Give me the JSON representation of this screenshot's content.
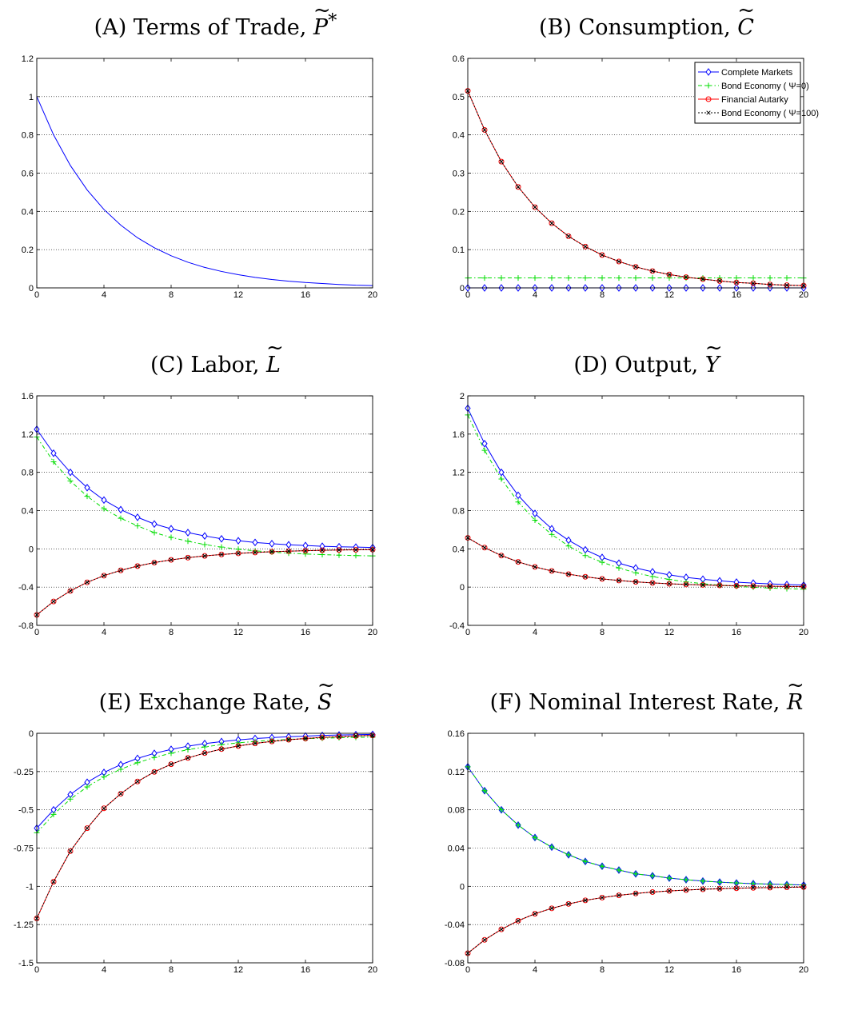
{
  "colors": {
    "complete_markets": "#0000ff",
    "bond_psi0": "#00dd00",
    "financial_autarky": "#ff0000",
    "bond_psi100": "#000000",
    "rate_marker_fill": "#40c0c0",
    "grid": "#000000",
    "axes": "#000000"
  },
  "legend": {
    "panel": "B",
    "entries": [
      {
        "series": "complete",
        "label": "Complete Markets"
      },
      {
        "series": "bond0",
        "label": "Bond Economy ( Ψ=0)"
      },
      {
        "series": "autarky",
        "label": "Financial Autarky"
      },
      {
        "series": "bond100",
        "label": "Bond Economy ( Ψ=100)"
      }
    ]
  },
  "chart_data": [
    {
      "id": "A",
      "type": "line",
      "title": "(A) Terms of Trade, ",
      "symbol": "P",
      "symbol_sup": "*",
      "x": [
        0,
        1,
        2,
        3,
        4,
        5,
        6,
        7,
        8,
        9,
        10,
        11,
        12,
        13,
        14,
        15,
        16,
        17,
        18,
        19,
        20
      ],
      "xticks": [
        "0",
        "4",
        "8",
        "12",
        "16",
        "20"
      ],
      "xlim": [
        0,
        20
      ],
      "ylim": [
        0,
        1.2
      ],
      "yticks": [
        "0",
        "0.2",
        "0.4",
        "0.6",
        "0.8",
        "1",
        "1.2"
      ],
      "grid": "horizontal dotted",
      "series": [
        {
          "key": "complete",
          "marker": "none",
          "values": [
            1,
            0.8,
            0.64,
            0.512,
            0.41,
            0.328,
            0.262,
            0.21,
            0.168,
            0.134,
            0.107,
            0.086,
            0.069,
            0.055,
            0.044,
            0.035,
            0.028,
            0.023,
            0.018,
            0.014,
            0.012
          ]
        }
      ]
    },
    {
      "id": "B",
      "type": "line",
      "title": "(B) Consumption, ",
      "symbol": "C",
      "symbol_sup": "",
      "x": [
        0,
        1,
        2,
        3,
        4,
        5,
        6,
        7,
        8,
        9,
        10,
        11,
        12,
        13,
        14,
        15,
        16,
        17,
        18,
        19,
        20
      ],
      "xticks": [
        "0",
        "4",
        "8",
        "12",
        "16",
        "20"
      ],
      "xlim": [
        0,
        20
      ],
      "ylim": [
        0,
        0.6
      ],
      "yticks": [
        "0",
        "0.1",
        "0.2",
        "0.3",
        "0.4",
        "0.5",
        "0.6"
      ],
      "grid": "horizontal dotted",
      "legend_location": "top-right",
      "series": [
        {
          "key": "complete",
          "marker": "diamond",
          "values": [
            0,
            0,
            0,
            0,
            0,
            0,
            0,
            0,
            0,
            0,
            0,
            0,
            0,
            0,
            0,
            0,
            0,
            0,
            0,
            0,
            0
          ]
        },
        {
          "key": "bond0",
          "marker": "plus",
          "values": [
            0.026,
            0.026,
            0.026,
            0.026,
            0.026,
            0.026,
            0.026,
            0.026,
            0.026,
            0.026,
            0.026,
            0.026,
            0.026,
            0.026,
            0.026,
            0.026,
            0.026,
            0.026,
            0.026,
            0.026,
            0.026
          ]
        },
        {
          "key": "autarky",
          "marker": "circle",
          "values": [
            0.515,
            0.413,
            0.33,
            0.264,
            0.211,
            0.169,
            0.135,
            0.108,
            0.086,
            0.069,
            0.055,
            0.044,
            0.035,
            0.028,
            0.023,
            0.018,
            0.014,
            0.012,
            0.009,
            0.007,
            0.006
          ]
        },
        {
          "key": "bond100",
          "marker": "x",
          "values": [
            0.515,
            0.413,
            0.33,
            0.264,
            0.211,
            0.169,
            0.135,
            0.108,
            0.086,
            0.069,
            0.055,
            0.044,
            0.035,
            0.028,
            0.023,
            0.018,
            0.014,
            0.012,
            0.009,
            0.007,
            0.006
          ]
        }
      ]
    },
    {
      "id": "C",
      "type": "line",
      "title": "(C) Labor, ",
      "symbol": "L",
      "symbol_sup": "",
      "x": [
        0,
        1,
        2,
        3,
        4,
        5,
        6,
        7,
        8,
        9,
        10,
        11,
        12,
        13,
        14,
        15,
        16,
        17,
        18,
        19,
        20
      ],
      "xticks": [
        "0",
        "4",
        "8",
        "12",
        "16",
        "20"
      ],
      "xlim": [
        0,
        20
      ],
      "ylim": [
        -0.8,
        1.6
      ],
      "yticks": [
        "-0.8",
        "-0.4",
        "0",
        "0.4",
        "0.8",
        "1.2",
        "1.6"
      ],
      "grid": "horizontal dotted",
      "series": [
        {
          "key": "complete",
          "marker": "diamond",
          "values": [
            1.25,
            1.0,
            0.8,
            0.64,
            0.51,
            0.41,
            0.33,
            0.26,
            0.21,
            0.17,
            0.135,
            0.105,
            0.085,
            0.067,
            0.054,
            0.043,
            0.035,
            0.027,
            0.022,
            0.018,
            0.014
          ]
        },
        {
          "key": "bond0",
          "marker": "plus",
          "values": [
            1.17,
            0.91,
            0.71,
            0.55,
            0.42,
            0.32,
            0.24,
            0.17,
            0.12,
            0.08,
            0.045,
            0.018,
            -0.004,
            -0.021,
            -0.034,
            -0.045,
            -0.054,
            -0.06,
            -0.066,
            -0.07,
            -0.074
          ]
        },
        {
          "key": "autarky",
          "marker": "circle",
          "values": [
            -0.69,
            -0.55,
            -0.44,
            -0.35,
            -0.28,
            -0.225,
            -0.18,
            -0.144,
            -0.115,
            -0.092,
            -0.074,
            -0.059,
            -0.047,
            -0.038,
            -0.03,
            -0.024,
            -0.019,
            -0.015,
            -0.012,
            -0.01,
            -0.008
          ]
        },
        {
          "key": "bond100",
          "marker": "x",
          "values": [
            -0.69,
            -0.55,
            -0.44,
            -0.35,
            -0.28,
            -0.225,
            -0.18,
            -0.144,
            -0.115,
            -0.092,
            -0.074,
            -0.059,
            -0.047,
            -0.038,
            -0.03,
            -0.024,
            -0.019,
            -0.015,
            -0.012,
            -0.01,
            -0.008
          ]
        }
      ]
    },
    {
      "id": "D",
      "type": "line",
      "title": "(D) Output, ",
      "symbol": "Y",
      "symbol_sup": "",
      "x": [
        0,
        1,
        2,
        3,
        4,
        5,
        6,
        7,
        8,
        9,
        10,
        11,
        12,
        13,
        14,
        15,
        16,
        17,
        18,
        19,
        20
      ],
      "xticks": [
        "0",
        "4",
        "8",
        "12",
        "16",
        "20"
      ],
      "xlim": [
        0,
        20
      ],
      "ylim": [
        -0.4,
        2
      ],
      "yticks": [
        "-0.4",
        "0",
        "0.4",
        "0.8",
        "1.2",
        "1.6",
        "2"
      ],
      "grid": "horizontal dotted",
      "series": [
        {
          "key": "complete",
          "marker": "diamond",
          "values": [
            1.87,
            1.5,
            1.2,
            0.96,
            0.77,
            0.61,
            0.49,
            0.39,
            0.31,
            0.25,
            0.2,
            0.16,
            0.128,
            0.102,
            0.082,
            0.066,
            0.052,
            0.042,
            0.034,
            0.027,
            0.021
          ]
        },
        {
          "key": "bond0",
          "marker": "plus",
          "values": [
            1.8,
            1.43,
            1.13,
            0.89,
            0.7,
            0.55,
            0.43,
            0.33,
            0.26,
            0.2,
            0.15,
            0.11,
            0.08,
            0.055,
            0.036,
            0.02,
            0.008,
            -0.002,
            -0.01,
            -0.016,
            -0.022
          ]
        },
        {
          "key": "autarky",
          "marker": "circle",
          "values": [
            0.515,
            0.413,
            0.33,
            0.264,
            0.211,
            0.169,
            0.135,
            0.108,
            0.086,
            0.069,
            0.055,
            0.044,
            0.035,
            0.028,
            0.023,
            0.018,
            0.014,
            0.012,
            0.009,
            0.007,
            0.006
          ]
        },
        {
          "key": "bond100",
          "marker": "x",
          "values": [
            0.515,
            0.413,
            0.33,
            0.264,
            0.211,
            0.169,
            0.135,
            0.108,
            0.086,
            0.069,
            0.055,
            0.044,
            0.035,
            0.028,
            0.023,
            0.018,
            0.014,
            0.012,
            0.009,
            0.007,
            0.006
          ]
        }
      ]
    },
    {
      "id": "E",
      "type": "line",
      "title": "(E) Exchange Rate, ",
      "symbol": "S",
      "symbol_sup": "",
      "x": [
        0,
        1,
        2,
        3,
        4,
        5,
        6,
        7,
        8,
        9,
        10,
        11,
        12,
        13,
        14,
        15,
        16,
        17,
        18,
        19,
        20
      ],
      "xticks": [
        "0",
        "4",
        "8",
        "12",
        "16",
        "20"
      ],
      "xlim": [
        0,
        20
      ],
      "ylim": [
        -1.5,
        0
      ],
      "yticks": [
        "-1.5",
        "-1.25",
        "-1",
        "-0.75",
        "-0.5",
        "-0.25",
        "0"
      ],
      "grid": "horizontal dotted",
      "series": [
        {
          "key": "complete",
          "marker": "diamond",
          "values": [
            -0.62,
            -0.5,
            -0.4,
            -0.32,
            -0.256,
            -0.205,
            -0.164,
            -0.131,
            -0.105,
            -0.084,
            -0.067,
            -0.054,
            -0.043,
            -0.034,
            -0.028,
            -0.022,
            -0.018,
            -0.014,
            -0.011,
            -0.009,
            -0.007
          ]
        },
        {
          "key": "bond0",
          "marker": "plus",
          "values": [
            -0.65,
            -0.53,
            -0.43,
            -0.35,
            -0.285,
            -0.235,
            -0.192,
            -0.158,
            -0.13,
            -0.107,
            -0.089,
            -0.074,
            -0.062,
            -0.053,
            -0.046,
            -0.04,
            -0.035,
            -0.032,
            -0.029,
            -0.027,
            -0.025
          ]
        },
        {
          "key": "autarky",
          "marker": "circle",
          "values": [
            -1.21,
            -0.97,
            -0.77,
            -0.62,
            -0.49,
            -0.395,
            -0.315,
            -0.252,
            -0.202,
            -0.161,
            -0.129,
            -0.103,
            -0.083,
            -0.066,
            -0.053,
            -0.042,
            -0.034,
            -0.027,
            -0.022,
            -0.017,
            -0.014
          ]
        },
        {
          "key": "bond100",
          "marker": "x",
          "values": [
            -1.21,
            -0.97,
            -0.77,
            -0.62,
            -0.49,
            -0.395,
            -0.315,
            -0.252,
            -0.202,
            -0.161,
            -0.129,
            -0.103,
            -0.083,
            -0.066,
            -0.053,
            -0.042,
            -0.034,
            -0.027,
            -0.022,
            -0.017,
            -0.014
          ]
        }
      ]
    },
    {
      "id": "F",
      "type": "line",
      "title": "(F) Nominal Interest Rate, ",
      "symbol": "R",
      "symbol_sup": "",
      "x": [
        0,
        1,
        2,
        3,
        4,
        5,
        6,
        7,
        8,
        9,
        10,
        11,
        12,
        13,
        14,
        15,
        16,
        17,
        18,
        19,
        20
      ],
      "xticks": [
        "0",
        "4",
        "8",
        "12",
        "16",
        "20"
      ],
      "xlim": [
        0,
        20
      ],
      "ylim": [
        -0.08,
        0.16
      ],
      "yticks": [
        "-0.08",
        "-0.04",
        "0",
        "0.04",
        "0.08",
        "0.12",
        "0.16"
      ],
      "grid": "horizontal dotted",
      "series": [
        {
          "key": "complete",
          "marker": "diamond",
          "values": [
            0.125,
            0.1,
            0.08,
            0.064,
            0.051,
            0.041,
            0.033,
            0.026,
            0.021,
            0.017,
            0.013,
            0.011,
            0.0086,
            0.0069,
            0.0055,
            0.0044,
            0.0035,
            0.0028,
            0.0023,
            0.0018,
            0.0014
          ]
        },
        {
          "key": "bond0",
          "marker": "plus",
          "values": [
            0.125,
            0.1,
            0.08,
            0.064,
            0.051,
            0.041,
            0.033,
            0.026,
            0.021,
            0.017,
            0.013,
            0.011,
            0.0086,
            0.0069,
            0.0055,
            0.0044,
            0.0035,
            0.0028,
            0.0023,
            0.0018,
            0.0014
          ]
        },
        {
          "key": "autarky",
          "marker": "circle",
          "values": [
            -0.07,
            -0.056,
            -0.045,
            -0.036,
            -0.0287,
            -0.023,
            -0.0184,
            -0.0147,
            -0.0118,
            -0.0094,
            -0.0075,
            -0.006,
            -0.0048,
            -0.0039,
            -0.0031,
            -0.0025,
            -0.002,
            -0.0016,
            -0.0013,
            -0.001,
            -0.0008
          ]
        },
        {
          "key": "bond100",
          "marker": "x",
          "values": [
            -0.07,
            -0.056,
            -0.045,
            -0.036,
            -0.0287,
            -0.023,
            -0.0184,
            -0.0147,
            -0.0118,
            -0.0094,
            -0.0075,
            -0.006,
            -0.0048,
            -0.0039,
            -0.0031,
            -0.0025,
            -0.002,
            -0.0016,
            -0.0013,
            -0.001,
            -0.0008
          ]
        }
      ]
    }
  ]
}
